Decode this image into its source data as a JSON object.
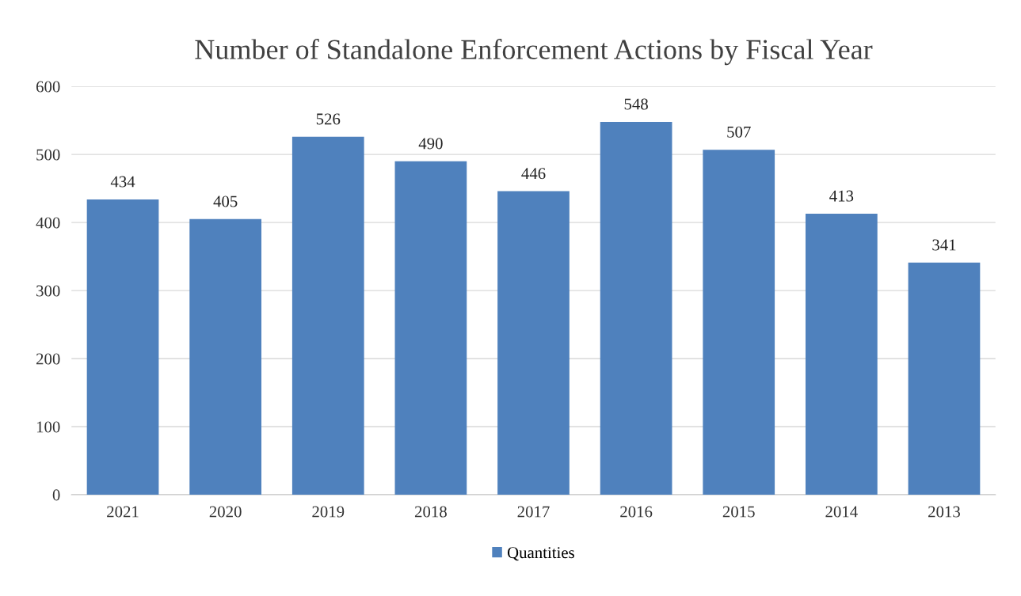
{
  "chart_data": {
    "type": "bar",
    "title": "Number of Standalone Enforcement Actions by Fiscal Year",
    "categories": [
      "2021",
      "2020",
      "2019",
      "2018",
      "2017",
      "2016",
      "2015",
      "2014",
      "2013"
    ],
    "series": [
      {
        "name": "Quantities",
        "color": "#4f81bd",
        "values": [
          434,
          405,
          526,
          490,
          446,
          548,
          507,
          413,
          341
        ]
      }
    ],
    "ylim": [
      0,
      600
    ],
    "yticks": [
      0,
      100,
      200,
      300,
      400,
      500,
      600
    ],
    "grid": "y",
    "legend": "bottom",
    "data_labels": true
  }
}
